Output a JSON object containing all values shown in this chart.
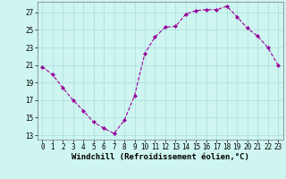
{
  "x": [
    0,
    1,
    2,
    3,
    4,
    5,
    6,
    7,
    8,
    9,
    10,
    11,
    12,
    13,
    14,
    15,
    16,
    17,
    18,
    19,
    20,
    21,
    22,
    23
  ],
  "y": [
    20.8,
    19.9,
    18.4,
    17.0,
    15.8,
    14.5,
    13.8,
    13.2,
    14.7,
    17.5,
    22.3,
    24.2,
    25.3,
    25.4,
    26.8,
    27.2,
    27.3,
    27.3,
    27.7,
    26.5,
    25.2,
    24.3,
    23.0,
    21.0
  ],
  "line_color": "#990099",
  "marker": "D",
  "marker_size": 2.0,
  "bg_color": "#cef5f0",
  "grid_color": "#aadddd",
  "xlabel": "Windchill (Refroidissement éolien,°C)",
  "yticks": [
    13,
    15,
    17,
    19,
    21,
    23,
    25,
    27
  ],
  "xticks": [
    0,
    1,
    2,
    3,
    4,
    5,
    6,
    7,
    8,
    9,
    10,
    11,
    12,
    13,
    14,
    15,
    16,
    17,
    18,
    19,
    20,
    21,
    22,
    23
  ],
  "ylim": [
    12.5,
    28.2
  ],
  "xlim": [
    -0.5,
    23.5
  ],
  "tick_fontsize": 5.5,
  "xlabel_fontsize": 6.5
}
